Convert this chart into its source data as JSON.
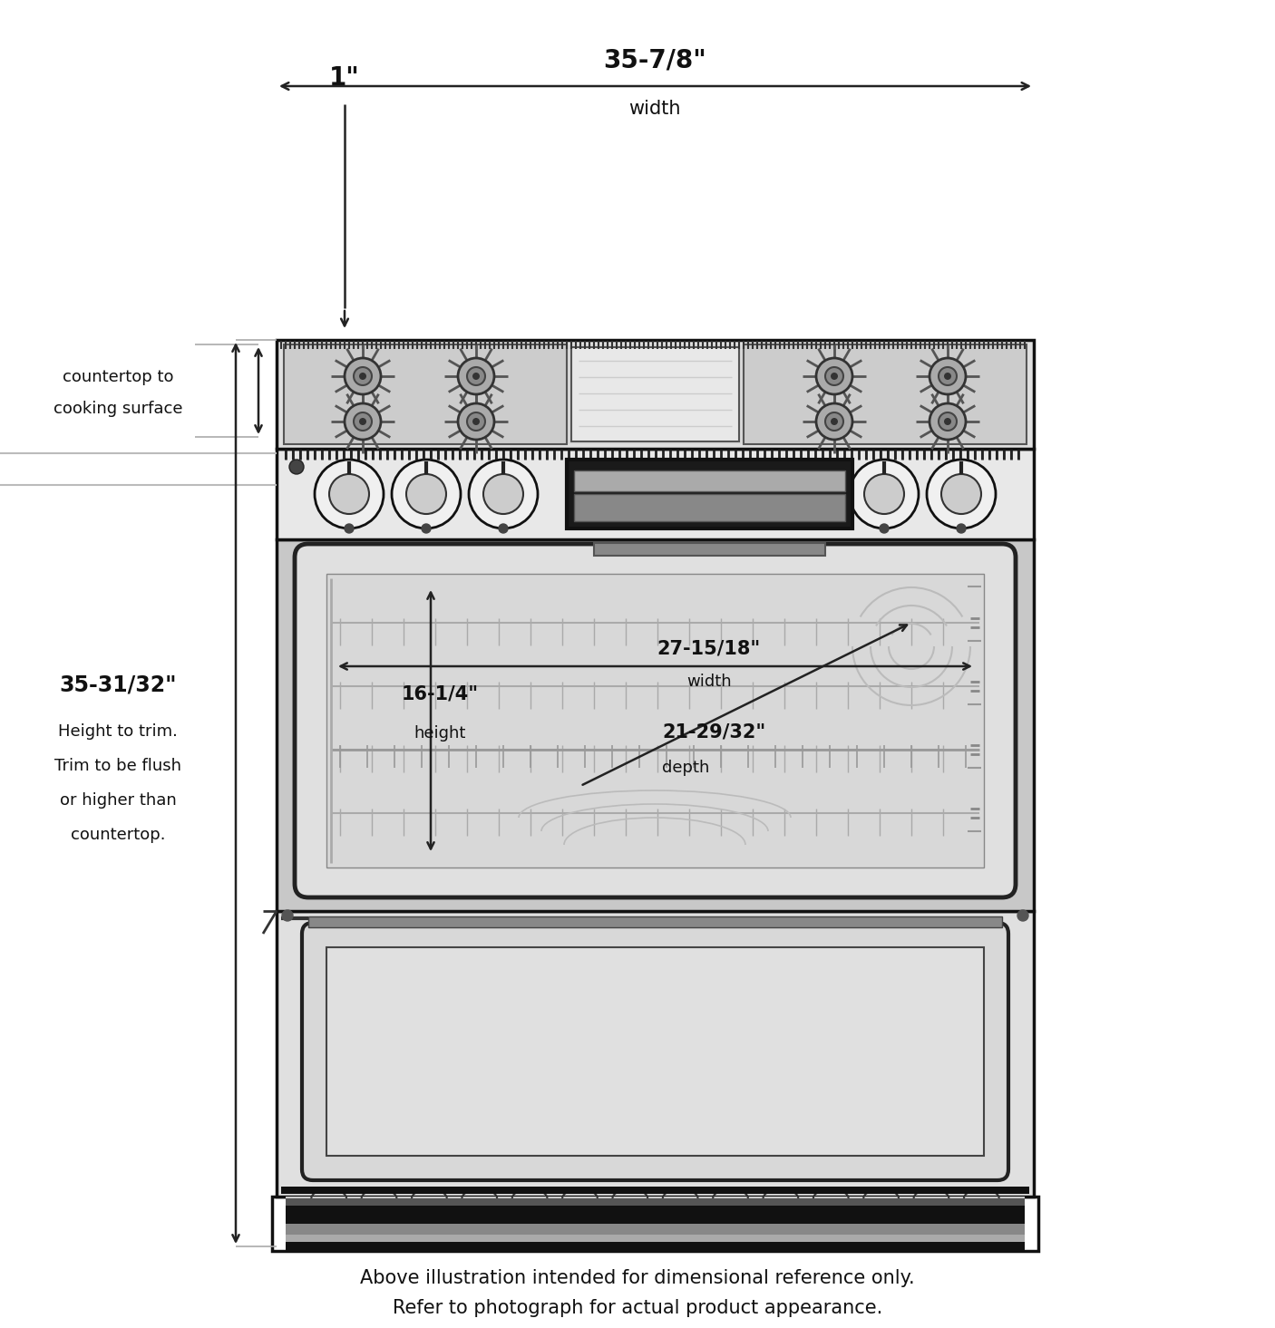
{
  "bg_color": "#ffffff",
  "line_color": "#111111",
  "dark_gray": "#333333",
  "mid_gray": "#888888",
  "light_gray": "#cccccc",
  "dim_1inch_label": "1\"",
  "dim_width_label": "35-7/8\"",
  "dim_width_sub": "width",
  "dim_height_label": "35-31/32\"",
  "dim_height_line1": "Height to trim.",
  "dim_height_line2": "Trim to be flush",
  "dim_height_line3": "or higher than",
  "dim_height_line4": "countertop.",
  "dim_countertop_line1": "countertop to",
  "dim_countertop_line2": "cooking surface",
  "dim_oven_width_label": "27-15/18\"",
  "dim_oven_width_sub": "width",
  "dim_oven_height_label": "16-1/4\"",
  "dim_oven_height_sub": "height",
  "dim_oven_depth_label": "21-29/32\"",
  "dim_oven_depth_sub": "depth",
  "footer_line1": "Above illustration intended for dimensional reference only.",
  "footer_line2": "Refer to photograph for actual product appearance."
}
